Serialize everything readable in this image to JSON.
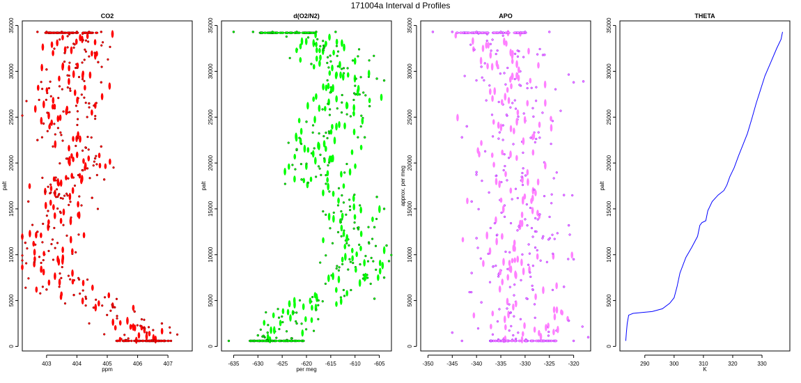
{
  "title": "171004a   Interval d Profiles",
  "chart_data": [
    {
      "type": "scatter",
      "title": "CO2",
      "xlabel": "ppm",
      "ylabel": "palt",
      "xlim": [
        402.2,
        407.8
      ],
      "ylim": [
        -500,
        35500
      ],
      "xticks": [
        403,
        404,
        405,
        406,
        407
      ],
      "yticks": [
        0,
        5000,
        10000,
        15000,
        20000,
        25000,
        30000,
        35000
      ],
      "color": "#ff0000",
      "outline": "#7a0000",
      "profile": [
        [
          406.2,
          600
        ],
        [
          405.6,
          3200
        ],
        [
          404.6,
          4700
        ],
        [
          403.6,
          5900
        ],
        [
          403.2,
          8000
        ],
        [
          402.9,
          11000
        ],
        [
          403.4,
          13000
        ],
        [
          403.6,
          15500
        ],
        [
          403.7,
          17500
        ],
        [
          404.1,
          19500
        ],
        [
          404.0,
          21500
        ],
        [
          403.5,
          23000
        ],
        [
          403.6,
          25000
        ],
        [
          403.7,
          27500
        ],
        [
          403.8,
          29500
        ],
        [
          404.0,
          31500
        ],
        [
          404.0,
          33500
        ],
        [
          403.8,
          34200
        ]
      ],
      "spread": 0.55,
      "points": [
        [
          406.5,
          600
        ],
        [
          407.1,
          600
        ],
        [
          405.8,
          600
        ],
        [
          406.3,
          1500
        ],
        [
          406.8,
          2500
        ],
        [
          405.9,
          3800
        ],
        [
          405.2,
          4300
        ],
        [
          404.3,
          5200
        ],
        [
          403.9,
          5600
        ],
        [
          403.0,
          6200
        ],
        [
          402.6,
          9200
        ],
        [
          402.3,
          11300
        ],
        [
          402.7,
          12500
        ],
        [
          402.4,
          15800
        ],
        [
          404.5,
          16200
        ],
        [
          404.9,
          18200
        ],
        [
          404.6,
          20500
        ],
        [
          404.8,
          21800
        ],
        [
          402.7,
          22500
        ],
        [
          402.9,
          24300
        ],
        [
          404.4,
          26500
        ],
        [
          404.8,
          28800
        ],
        [
          403.0,
          30200
        ],
        [
          404.7,
          31000
        ],
        [
          403.6,
          32000
        ],
        [
          404.2,
          33400
        ],
        [
          402.7,
          34300
        ],
        [
          403.0,
          34300
        ],
        [
          403.5,
          34300
        ],
        [
          404.0,
          34300
        ],
        [
          404.4,
          34300
        ],
        [
          404.8,
          34300
        ]
      ]
    },
    {
      "type": "scatter",
      "title": "d(O2/N2)",
      "xlabel": "per meg",
      "ylabel": "palt",
      "xlim": [
        -637.5,
        -602.5
      ],
      "ylim": [
        -500,
        35500
      ],
      "xticks": [
        -635,
        -630,
        -625,
        -620,
        -615,
        -610,
        -605
      ],
      "yticks": [
        0,
        5000,
        10000,
        15000,
        20000,
        25000,
        30000,
        35000
      ],
      "color": "#00ff00",
      "outline": "#005000",
      "profile": [
        [
          -626,
          600
        ],
        [
          -625,
          2000
        ],
        [
          -623.5,
          3500
        ],
        [
          -620,
          4500
        ],
        [
          -616,
          5500
        ],
        [
          -612,
          6500
        ],
        [
          -610,
          8500
        ],
        [
          -609.5,
          10500
        ],
        [
          -610,
          12500
        ],
        [
          -611.5,
          14500
        ],
        [
          -613,
          16500
        ],
        [
          -617.5,
          17500
        ],
        [
          -618,
          19000
        ],
        [
          -617,
          21000
        ],
        [
          -617.5,
          23000
        ],
        [
          -614.5,
          25000
        ],
        [
          -612.5,
          27000
        ],
        [
          -613,
          29000
        ],
        [
          -614,
          31000
        ],
        [
          -616,
          32500
        ],
        [
          -619,
          33500
        ],
        [
          -624,
          34200
        ]
      ],
      "spread": 3.5,
      "points": [
        [
          -636,
          600
        ],
        [
          -631,
          600
        ],
        [
          -621,
          600
        ],
        [
          -628,
          1500
        ],
        [
          -630,
          1200
        ],
        [
          -622,
          2500
        ],
        [
          -618,
          4000
        ],
        [
          -606,
          5200
        ],
        [
          -604,
          7500
        ],
        [
          -603,
          9300
        ],
        [
          -603.5,
          11000
        ],
        [
          -606,
          13000
        ],
        [
          -604,
          15000
        ],
        [
          -605.5,
          16300
        ],
        [
          -621,
          18200
        ],
        [
          -622,
          21500
        ],
        [
          -608,
          22800
        ],
        [
          -620,
          24500
        ],
        [
          -607,
          26200
        ],
        [
          -604,
          29000
        ],
        [
          -605.5,
          29200
        ],
        [
          -619,
          30800
        ],
        [
          -635,
          34300
        ],
        [
          -631,
          34300
        ],
        [
          -627,
          34300
        ],
        [
          -622,
          34300
        ],
        [
          -618,
          34300
        ],
        [
          -614,
          34300
        ]
      ]
    },
    {
      "type": "scatter",
      "title": "APO",
      "xlabel": "",
      "ylabel": "approx. per meg",
      "xlim": [
        -351.5,
        -316.5
      ],
      "ylim": [
        -500,
        35500
      ],
      "xticks": [
        -350,
        -345,
        -340,
        -335,
        -330,
        -325,
        -320
      ],
      "yticks": [
        0,
        5000,
        10000,
        15000,
        20000,
        25000,
        30000,
        35000
      ],
      "color": "#ff80ff",
      "outline": "#9020ff",
      "profile": [
        [
          -330,
          600
        ],
        [
          -330.5,
          3000
        ],
        [
          -331,
          6000
        ],
        [
          -331,
          9000
        ],
        [
          -331.5,
          12000
        ],
        [
          -331,
          15000
        ],
        [
          -332,
          18000
        ],
        [
          -333,
          21000
        ],
        [
          -332,
          24000
        ],
        [
          -331.5,
          27000
        ],
        [
          -332,
          30000
        ],
        [
          -334,
          32500
        ],
        [
          -337,
          34200
        ]
      ],
      "spread": 4.5,
      "points": [
        [
          -343,
          600
        ],
        [
          -337,
          600
        ],
        [
          -325,
          600
        ],
        [
          -320,
          600
        ],
        [
          -317,
          1000
        ],
        [
          -345,
          1500
        ],
        [
          -321,
          2800
        ],
        [
          -339,
          4800
        ],
        [
          -322,
          6500
        ],
        [
          -341,
          8000
        ],
        [
          -320,
          9500
        ],
        [
          -340,
          11800
        ],
        [
          -321,
          13200
        ],
        [
          -341,
          15800
        ],
        [
          -322,
          16500
        ],
        [
          -340,
          19000
        ],
        [
          -343,
          22800
        ],
        [
          -342,
          24000
        ],
        [
          -320,
          28800
        ],
        [
          -318,
          28900
        ],
        [
          -339,
          30500
        ],
        [
          -326,
          31800
        ],
        [
          -349,
          34300
        ],
        [
          -345,
          34300
        ],
        [
          -340,
          34300
        ],
        [
          -335,
          34300
        ],
        [
          -330,
          34300
        ],
        [
          -325,
          34300
        ]
      ]
    },
    {
      "type": "line",
      "title": "THETA",
      "xlabel": "K",
      "ylabel": "palt",
      "xlim": [
        281.5,
        339.5
      ],
      "ylim": [
        -500,
        35500
      ],
      "xticks": [
        290,
        300,
        310,
        320,
        330
      ],
      "yticks": [
        0,
        5000,
        10000,
        15000,
        20000,
        25000,
        30000,
        35000
      ],
      "color": "#0000ff",
      "series": [
        [
          283.5,
          600
        ],
        [
          283.7,
          1500
        ],
        [
          284.0,
          2500
        ],
        [
          284.5,
          3400
        ],
        [
          286.0,
          3600
        ],
        [
          289.0,
          3700
        ],
        [
          292.5,
          3800
        ],
        [
          296.0,
          4100
        ],
        [
          298.5,
          4700
        ],
        [
          300.0,
          5300
        ],
        [
          301.0,
          6500
        ],
        [
          302.0,
          8000
        ],
        [
          304.0,
          9700
        ],
        [
          306.0,
          10800
        ],
        [
          308.0,
          12000
        ],
        [
          308.8,
          13200
        ],
        [
          309.5,
          13500
        ],
        [
          310.8,
          13700
        ],
        [
          311.5,
          14800
        ],
        [
          313.0,
          15800
        ],
        [
          315.0,
          16500
        ],
        [
          317.0,
          17000
        ],
        [
          318.0,
          17600
        ],
        [
          319.0,
          18500
        ],
        [
          320.5,
          19500
        ],
        [
          322.0,
          20800
        ],
        [
          323.5,
          22000
        ],
        [
          325.0,
          23200
        ],
        [
          326.5,
          24800
        ],
        [
          328.0,
          26500
        ],
        [
          329.5,
          28000
        ],
        [
          331.0,
          29500
        ],
        [
          333.0,
          31000
        ],
        [
          335.0,
          32500
        ],
        [
          336.5,
          33500
        ],
        [
          337.0,
          34300
        ]
      ]
    }
  ]
}
